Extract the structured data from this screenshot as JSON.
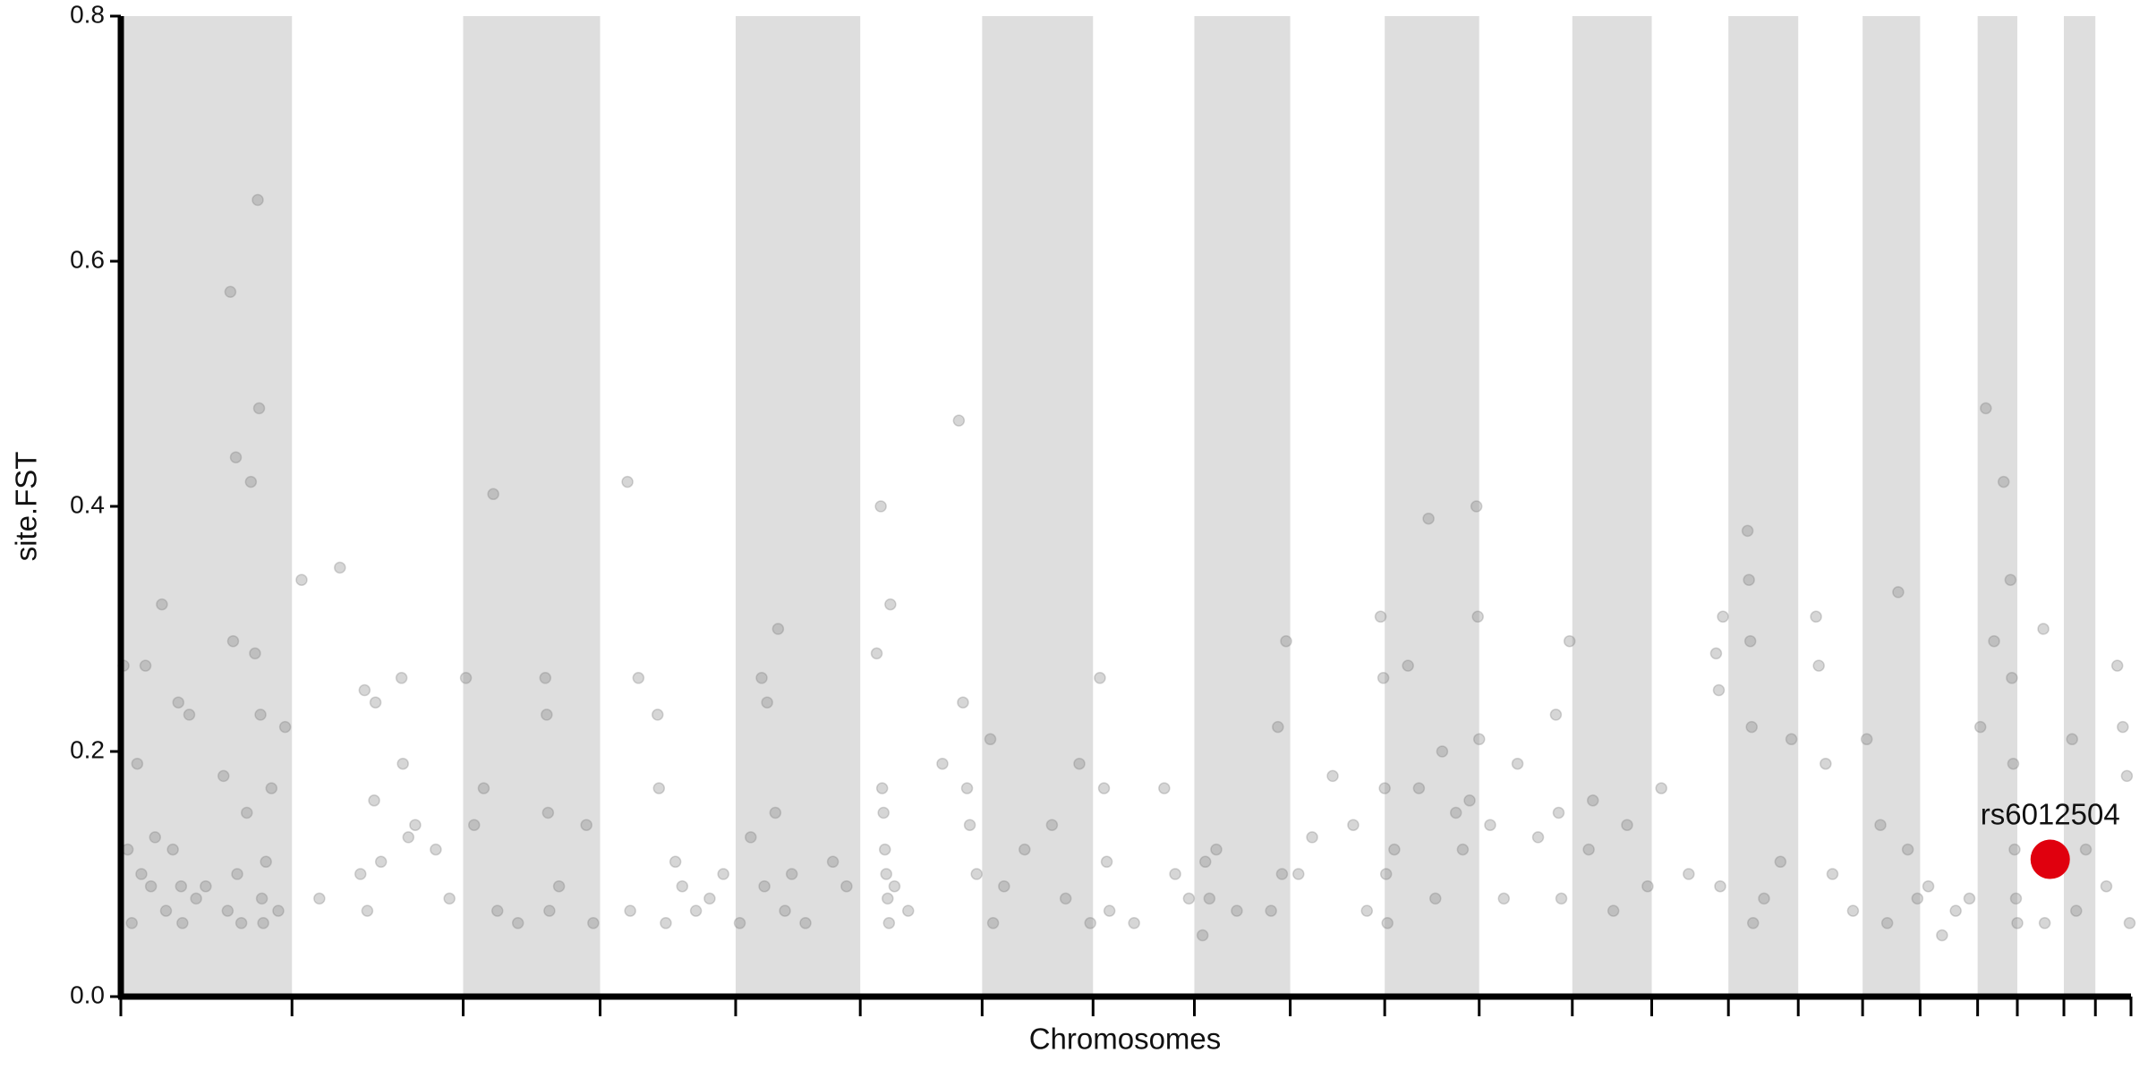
{
  "chart_data": {
    "type": "scatter",
    "x_label": "Chromosomes",
    "y_label": "site.FST",
    "xlim": [
      0,
      1468
    ],
    "ylim": [
      0,
      0.8
    ],
    "yticks": [
      {
        "value": 0,
        "label": "0.0"
      },
      0.2,
      0.4,
      0.6,
      0.8
    ],
    "chromosome_bounds": [
      0,
      125,
      250,
      350,
      449,
      540,
      629,
      710,
      784,
      854,
      923,
      992,
      1060,
      1118,
      1174,
      1225,
      1272,
      1314,
      1356,
      1385,
      1419,
      1442,
      1468
    ],
    "band_color": "#dedede",
    "point_color": "#777777",
    "point_opacity": 0.3,
    "x": [
      2,
      5,
      8,
      12,
      15,
      18,
      22,
      25,
      30,
      33,
      38,
      42,
      44,
      45,
      50,
      55,
      62,
      75,
      78,
      80,
      82,
      84,
      85,
      88,
      92,
      95,
      98,
      100,
      101,
      102,
      103,
      104,
      106,
      110,
      115,
      120,
      132,
      145,
      160,
      175,
      178,
      180,
      185,
      186,
      190,
      205,
      206,
      210,
      215,
      230,
      240,
      252,
      258,
      265,
      272,
      275,
      290,
      310,
      311,
      312,
      313,
      320,
      340,
      345,
      370,
      372,
      378,
      392,
      393,
      398,
      405,
      410,
      420,
      430,
      440,
      452,
      460,
      468,
      470,
      472,
      478,
      480,
      485,
      490,
      500,
      520,
      530,
      552,
      555,
      556,
      557,
      558,
      559,
      560,
      561,
      562,
      565,
      575,
      600,
      612,
      615,
      618,
      620,
      625,
      635,
      637,
      645,
      660,
      680,
      690,
      700,
      708,
      715,
      718,
      720,
      722,
      740,
      762,
      770,
      780,
      790,
      792,
      795,
      800,
      815,
      840,
      845,
      848,
      851,
      860,
      870,
      885,
      900,
      910,
      920,
      922,
      923,
      924,
      925,
      930,
      940,
      948,
      955,
      960,
      965,
      975,
      980,
      985,
      990,
      991,
      992,
      1000,
      1010,
      1020,
      1035,
      1048,
      1050,
      1052,
      1058,
      1072,
      1075,
      1090,
      1100,
      1115,
      1125,
      1145,
      1165,
      1167,
      1168,
      1170,
      1188,
      1189,
      1190,
      1191,
      1192,
      1200,
      1212,
      1220,
      1238,
      1240,
      1245,
      1250,
      1265,
      1275,
      1285,
      1290,
      1298,
      1305,
      1312,
      1320,
      1330,
      1340,
      1350,
      1358,
      1362,
      1368,
      1375,
      1380,
      1381,
      1382,
      1383,
      1384,
      1385,
      1404,
      1405,
      1425,
      1428,
      1435,
      1450,
      1458,
      1462,
      1465,
      1467
    ],
    "values": [
      0.27,
      0.12,
      0.06,
      0.19,
      0.1,
      0.27,
      0.09,
      0.13,
      0.32,
      0.07,
      0.12,
      0.24,
      0.09,
      0.06,
      0.23,
      0.08,
      0.09,
      0.18,
      0.07,
      0.575,
      0.29,
      0.44,
      0.1,
      0.06,
      0.15,
      0.42,
      0.28,
      0.65,
      0.48,
      0.23,
      0.08,
      0.06,
      0.11,
      0.17,
      0.07,
      0.22,
      0.34,
      0.08,
      0.35,
      0.1,
      0.25,
      0.07,
      0.16,
      0.24,
      0.11,
      0.26,
      0.19,
      0.13,
      0.14,
      0.12,
      0.08,
      0.26,
      0.14,
      0.17,
      0.41,
      0.07,
      0.06,
      0.26,
      0.23,
      0.15,
      0.07,
      0.09,
      0.14,
      0.06,
      0.42,
      0.07,
      0.26,
      0.23,
      0.17,
      0.06,
      0.11,
      0.09,
      0.07,
      0.08,
      0.1,
      0.06,
      0.13,
      0.26,
      0.09,
      0.24,
      0.15,
      0.3,
      0.07,
      0.1,
      0.06,
      0.11,
      0.09,
      0.28,
      0.4,
      0.17,
      0.15,
      0.12,
      0.1,
      0.08,
      0.06,
      0.32,
      0.09,
      0.07,
      0.19,
      0.47,
      0.24,
      0.17,
      0.14,
      0.1,
      0.21,
      0.06,
      0.09,
      0.12,
      0.14,
      0.08,
      0.19,
      0.06,
      0.26,
      0.17,
      0.11,
      0.07,
      0.06,
      0.17,
      0.1,
      0.08,
      0.05,
      0.11,
      0.08,
      0.12,
      0.07,
      0.07,
      0.22,
      0.1,
      0.29,
      0.1,
      0.13,
      0.18,
      0.14,
      0.07,
      0.31,
      0.26,
      0.17,
      0.1,
      0.06,
      0.12,
      0.27,
      0.17,
      0.39,
      0.08,
      0.2,
      0.15,
      0.12,
      0.16,
      0.4,
      0.31,
      0.21,
      0.14,
      0.08,
      0.19,
      0.13,
      0.23,
      0.15,
      0.08,
      0.29,
      0.12,
      0.16,
      0.07,
      0.14,
      0.09,
      0.17,
      0.1,
      0.28,
      0.25,
      0.09,
      0.31,
      0.38,
      0.34,
      0.29,
      0.22,
      0.06,
      0.08,
      0.11,
      0.21,
      0.31,
      0.27,
      0.19,
      0.1,
      0.07,
      0.21,
      0.14,
      0.06,
      0.33,
      0.12,
      0.08,
      0.09,
      0.05,
      0.07,
      0.08,
      0.22,
      0.48,
      0.29,
      0.42,
      0.34,
      0.26,
      0.19,
      0.12,
      0.08,
      0.06,
      0.3,
      0.06,
      0.21,
      0.07,
      0.12,
      0.09,
      0.27,
      0.22,
      0.18,
      0.06
    ],
    "highlight": {
      "label": "rs6012504",
      "x": 1409,
      "value": 0.112,
      "color": "#e0000e"
    }
  }
}
